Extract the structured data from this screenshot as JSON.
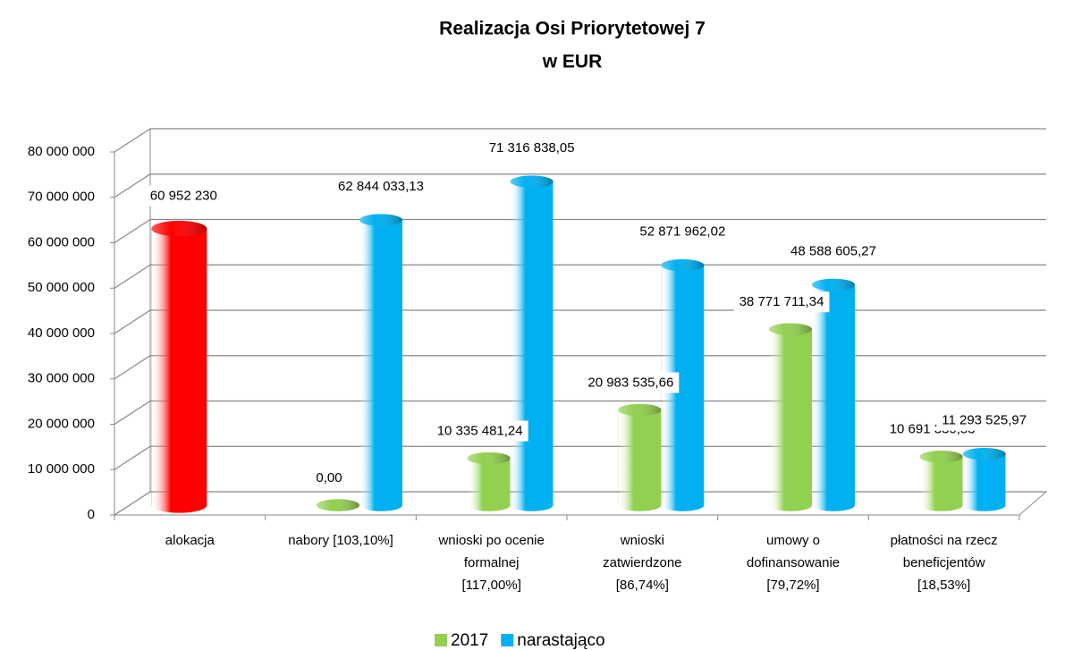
{
  "chart_data": {
    "type": "bar3d",
    "title": [
      "Realizacja Osi Priorytetowej 7",
      "w EUR"
    ],
    "categories": [
      [
        "alokacja"
      ],
      [
        "nabory [103,10%]"
      ],
      [
        "wnioski po ocenie",
        "formalnej",
        "[117,00%]"
      ],
      [
        "wnioski",
        "zatwierdzone",
        "[86,74%]"
      ],
      [
        "umowy o",
        "dofinansowanie",
        "[79,72%]"
      ],
      [
        "płatności na rzecz",
        "beneficjentów",
        "[18,53%]"
      ]
    ],
    "allocation": {
      "value": 60952230,
      "label": "60 952 230",
      "color": "#ff0000"
    },
    "series": [
      {
        "name": "2017",
        "color": "#92d050",
        "values": [
          null,
          0,
          10335481.24,
          20983535.66,
          38771711.34,
          10691330.53
        ],
        "value_labels": [
          null,
          "0,00",
          "10 335 481,24",
          "20 983 535,66",
          "38 771 711,34",
          "10 691 330,53"
        ]
      },
      {
        "name": "narastająco",
        "color": "#00b0f0",
        "values": [
          null,
          62844033.13,
          71316838.05,
          52871962.02,
          48588605.27,
          11293525.97
        ],
        "value_labels": [
          null,
          "62 844 033,13",
          "71 316 838,05",
          "52 871 962,02",
          "48 588 605,27",
          "11 293 525,97"
        ]
      }
    ],
    "ylim": [
      0,
      80000000
    ],
    "yticks": [
      0,
      {
        "value": 10000000,
        "label": "10 000 000"
      },
      {
        "value": 20000000,
        "label": "20 000 000"
      },
      {
        "value": 30000000,
        "label": "30 000 000"
      },
      {
        "value": 40000000,
        "label": "40 000 000"
      },
      {
        "value": 50000000,
        "label": "50 000 000"
      },
      {
        "value": 60000000,
        "label": "60 000 000"
      },
      {
        "value": 70000000,
        "label": "70 000 000"
      },
      {
        "value": 80000000,
        "label": "80 000 000"
      }
    ],
    "grid": true,
    "legend": "bottom"
  }
}
